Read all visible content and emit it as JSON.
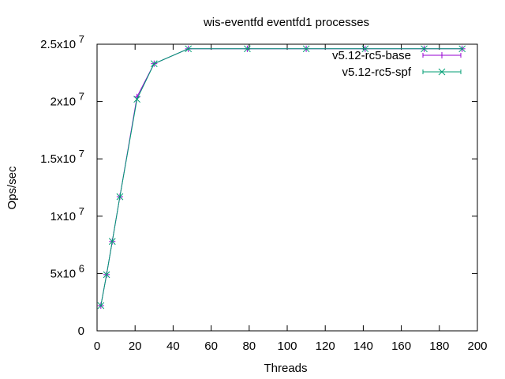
{
  "chart_data": {
    "type": "line",
    "title": "wis-eventfd eventfd1 processes",
    "xlabel": "Threads",
    "ylabel": "Ops/sec",
    "xlim": [
      0,
      200
    ],
    "ylim": [
      0,
      25000000
    ],
    "x_ticks": [
      "0",
      "20",
      "40",
      "60",
      "80",
      "100",
      "120",
      "140",
      "160",
      "180",
      "200"
    ],
    "y_ticks": [
      {
        "mantissa": "0",
        "exponent": ""
      },
      {
        "mantissa": "5x10",
        "exponent": "6"
      },
      {
        "mantissa": "1x10",
        "exponent": "7"
      },
      {
        "mantissa": "1.5x10",
        "exponent": "7"
      },
      {
        "mantissa": "2x10",
        "exponent": "7"
      },
      {
        "mantissa": "2.5x10",
        "exponent": "7"
      }
    ],
    "legend_position": "top-right",
    "grid": false,
    "series": [
      {
        "name": "v5.12-rc5-base",
        "color": "#9400d3",
        "marker": "plus",
        "x": [
          2,
          5,
          8,
          12,
          21,
          30,
          48,
          79,
          110,
          141,
          172,
          192
        ],
        "y": [
          2200000,
          4900000,
          7800000,
          11700000,
          20400000,
          23300000,
          24600000,
          24600000,
          24600000,
          24600000,
          24600000,
          24600000
        ]
      },
      {
        "name": "v5.12-rc5-spf",
        "color": "#009e73",
        "marker": "cross",
        "x": [
          2,
          5,
          8,
          12,
          21,
          30,
          48,
          79,
          110,
          141,
          172,
          192
        ],
        "y": [
          2200000,
          4900000,
          7800000,
          11700000,
          20200000,
          23300000,
          24600000,
          24600000,
          24600000,
          24600000,
          24600000,
          24600000
        ]
      }
    ]
  }
}
